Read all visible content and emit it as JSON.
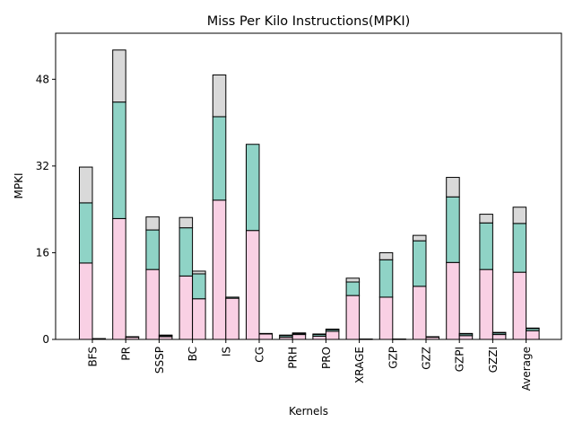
{
  "chart_data": {
    "type": "bar",
    "stacked": true,
    "grouped": true,
    "title": "Miss Per Kilo Instructions(MPKI)",
    "xlabel": "Kernels",
    "ylabel": "MPKI",
    "ylim": [
      0,
      56.5
    ],
    "yticks": [
      0,
      16,
      32,
      48
    ],
    "grid": false,
    "legend": "none",
    "categories": [
      "BFS",
      "PR",
      "SSSP",
      "BC",
      "IS",
      "CG",
      "PRH",
      "PRO",
      "XRAGE",
      "GZP",
      "GZZ",
      "GZPI",
      "GZZI",
      "Average"
    ],
    "colors": [
      "#f9d0e4",
      "#8fd3c6",
      "#d9d9d9"
    ],
    "groups": [
      {
        "series": [
          {
            "values": [
              14.1,
              22.3,
              12.9,
              11.7,
              25.7,
              20.1,
              0.4,
              0.6,
              8.1,
              7.8,
              9.8,
              14.2,
              12.9,
              12.4
            ]
          },
          {
            "values": [
              11.1,
              21.5,
              7.3,
              8.9,
              15.4,
              15.9,
              0.3,
              0.3,
              2.5,
              6.9,
              8.4,
              12.1,
              8.6,
              9.0
            ]
          },
          {
            "values": [
              6.6,
              9.6,
              2.4,
              1.9,
              7.7,
              0.0,
              0.1,
              0.1,
              0.7,
              1.3,
              1.0,
              3.6,
              1.6,
              3.0
            ]
          }
        ]
      },
      {
        "series": [
          {
            "values": [
              0.1,
              0.4,
              0.5,
              7.5,
              7.6,
              1.0,
              0.9,
              1.5,
              0.05,
              0.05,
              0.4,
              0.7,
              0.9,
              1.6
            ]
          },
          {
            "values": [
              0.05,
              0.1,
              0.2,
              4.6,
              0.2,
              0.1,
              0.2,
              0.3,
              0.02,
              0.02,
              0.1,
              0.3,
              0.3,
              0.4
            ]
          },
          {
            "values": [
              0.0,
              0.0,
              0.1,
              0.5,
              0.0,
              0.0,
              0.1,
              0.1,
              0.0,
              0.0,
              0.0,
              0.1,
              0.1,
              0.1
            ]
          }
        ]
      }
    ]
  }
}
